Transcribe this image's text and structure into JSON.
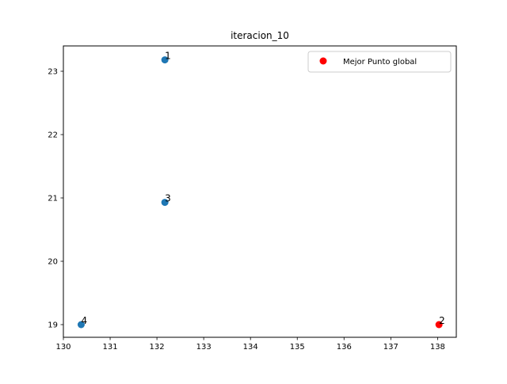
{
  "chart_data": {
    "type": "scatter",
    "title": "iteracion_10",
    "xlabel": "",
    "ylabel": "",
    "xlim": [
      130.0,
      138.4
    ],
    "ylim": [
      18.8,
      23.4
    ],
    "xticks": [
      130,
      131,
      132,
      133,
      134,
      135,
      136,
      137,
      138
    ],
    "yticks": [
      19,
      20,
      21,
      22,
      23
    ],
    "grid": false,
    "legend_position": "top-right",
    "series": [
      {
        "color": "#1f77b4",
        "points": [
          {
            "label": "1",
            "x": 132.17,
            "y": 23.18
          },
          {
            "label": "3",
            "x": 132.17,
            "y": 20.93
          },
          {
            "label": "4",
            "x": 130.38,
            "y": 19.0
          }
        ]
      },
      {
        "name": "Mejor Punto global",
        "color": "#ff0000",
        "points": [
          {
            "label": "2",
            "x": 138.03,
            "y": 19.0
          }
        ]
      }
    ]
  }
}
